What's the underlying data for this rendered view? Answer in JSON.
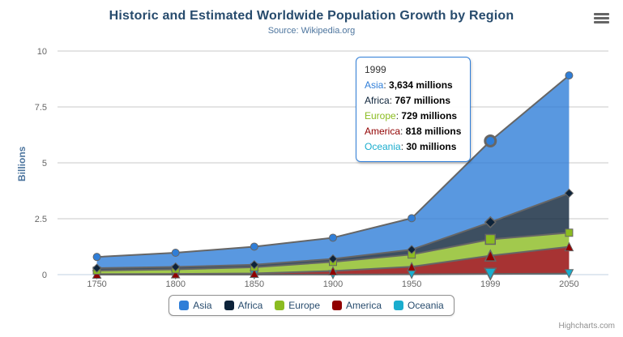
{
  "header": {
    "title": "Historic and Estimated Worldwide Population Growth by Region",
    "subtitle": "Source: Wikipedia.org"
  },
  "icons": {
    "menu": "hamburger-menu"
  },
  "credits": {
    "label": "Highcharts.com"
  },
  "chart_data": {
    "type": "area",
    "stacking": "normal",
    "title": "Historic and Estimated Worldwide Population Growth by Region",
    "subtitle": "Source: Wikipedia.org",
    "xlabel": "",
    "ylabel": "Billions",
    "unit": "millions",
    "categories": [
      "1750",
      "1800",
      "1850",
      "1900",
      "1950",
      "1999",
      "2050"
    ],
    "ylim": [
      0,
      10
    ],
    "yticks": [
      0,
      2.5,
      5,
      7.5,
      10
    ],
    "ytick_labels": [
      "0",
      "2.5",
      "5",
      "7.5",
      "10"
    ],
    "grid": "horizontal",
    "legend_position": "bottom",
    "line_color": "#666666",
    "fill_opacity": 0.8,
    "hover_index": 5,
    "series": [
      {
        "name": "Asia",
        "color": "#2f7ed8",
        "marker": "circle",
        "values": [
          502,
          635,
          809,
          947,
          1402,
          3634,
          5268
        ]
      },
      {
        "name": "Africa",
        "color": "#0d233a",
        "marker": "diamond",
        "values": [
          106,
          107,
          111,
          133,
          221,
          767,
          1766
        ]
      },
      {
        "name": "Europe",
        "color": "#8bbc21",
        "marker": "square",
        "values": [
          163,
          203,
          276,
          408,
          547,
          729,
          628
        ]
      },
      {
        "name": "America",
        "color": "#910000",
        "marker": "triangle",
        "values": [
          18,
          31,
          54,
          156,
          339,
          818,
          1201
        ]
      },
      {
        "name": "Oceania",
        "color": "#1aadce",
        "marker": "triangle-down",
        "values": [
          2,
          2,
          2,
          6,
          13,
          30,
          46
        ]
      }
    ],
    "stack_order_bottom_to_top": [
      "Oceania",
      "America",
      "Europe",
      "Africa",
      "Asia"
    ]
  },
  "tooltip": {
    "header": "1999",
    "border_color": "#2f7ed8",
    "rows": [
      {
        "name": "Asia",
        "color": "#2f7ed8",
        "value": "3,634 millions"
      },
      {
        "name": "Africa",
        "color": "#0d233a",
        "value": "767 millions"
      },
      {
        "name": "Europe",
        "color": "#8bbc21",
        "value": "729 millions"
      },
      {
        "name": "America",
        "color": "#910000",
        "value": "818 millions"
      },
      {
        "name": "Oceania",
        "color": "#1aadce",
        "value": "30 millions"
      }
    ]
  },
  "axis_style": {
    "tick_label_color": "#666666",
    "grid_color": "#c8c8c8",
    "axis_line_color": "#c0d0e0"
  }
}
